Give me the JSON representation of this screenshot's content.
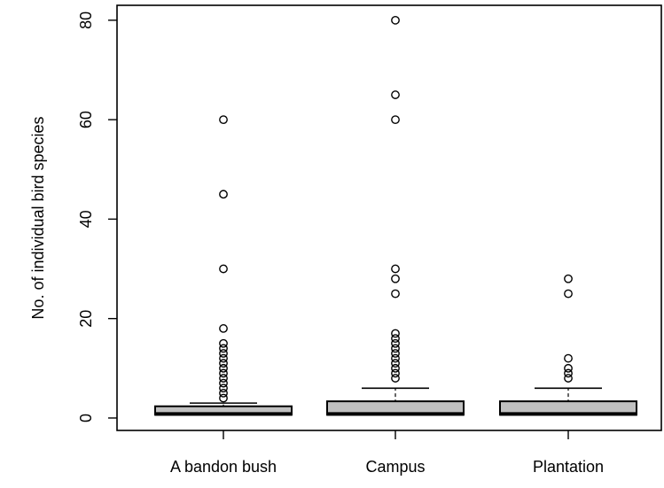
{
  "chart_data": {
    "type": "boxplot",
    "title": "",
    "xlabel": "",
    "ylabel": "No. of individual bird species",
    "ylim": [
      -2.5,
      83
    ],
    "yticks": [
      0,
      20,
      40,
      60,
      80
    ],
    "ytick_labels": [
      "0",
      "20",
      "40",
      "60",
      "80"
    ],
    "categories": [
      "A bandon bush",
      "Campus",
      "Plantation"
    ],
    "boxes": [
      {
        "category": "A bandon bush",
        "whisker_low": 1,
        "q1": 1,
        "median": 1,
        "q3": 2,
        "whisker_high": 3,
        "outliers": [
          60,
          45,
          30,
          18,
          15,
          14,
          13,
          12,
          11,
          10,
          9,
          8,
          7,
          6,
          5,
          4
        ]
      },
      {
        "category": "Campus",
        "whisker_low": 1,
        "q1": 1,
        "median": 1,
        "q3": 3,
        "whisker_high": 6,
        "outliers": [
          80,
          65,
          60,
          30,
          28,
          25,
          17,
          16,
          15,
          14,
          13,
          12,
          11,
          10,
          9,
          8
        ]
      },
      {
        "category": "Plantation",
        "whisker_low": 1,
        "q1": 1,
        "median": 1,
        "q3": 3,
        "whisker_high": 6,
        "outliers": [
          28,
          25,
          12,
          10,
          9,
          8
        ]
      }
    ],
    "grid": false,
    "legend": "none"
  },
  "colors": {
    "box_fill": "#c0c0c0",
    "stroke": "#000000",
    "background": "#ffffff"
  }
}
